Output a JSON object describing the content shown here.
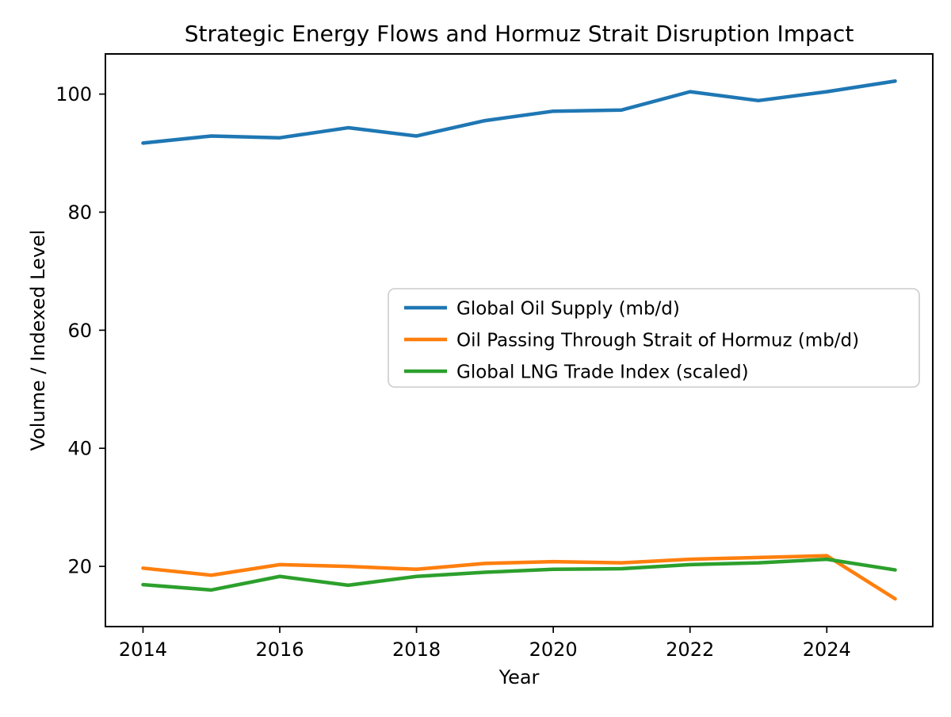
{
  "title": "Strategic Energy Flows and Hormuz Strait Disruption Impact",
  "chart_data": {
    "type": "line",
    "title": "Strategic Energy Flows and Hormuz Strait Disruption Impact",
    "xlabel": "Year",
    "ylabel": "Volume / Indexed Level",
    "x": [
      2014,
      2015,
      2016,
      2017,
      2018,
      2019,
      2020,
      2021,
      2022,
      2023,
      2024,
      2025
    ],
    "series": [
      {
        "name": "Global Oil Supply (mb/d)",
        "color": "#1f77b4",
        "values": [
          91.7,
          92.9,
          92.6,
          94.3,
          92.9,
          95.5,
          97.1,
          97.3,
          100.4,
          98.9,
          100.4,
          102.2
        ]
      },
      {
        "name": "Oil Passing Through Strait of Hormuz (mb/d)",
        "color": "#ff7f0e",
        "values": [
          19.7,
          18.5,
          20.3,
          20.0,
          19.5,
          20.5,
          20.8,
          20.6,
          21.2,
          21.5,
          21.8,
          14.5
        ]
      },
      {
        "name": "Global LNG Trade Index (scaled)",
        "color": "#2ca02c",
        "values": [
          16.9,
          16.0,
          18.3,
          16.8,
          18.3,
          19.0,
          19.5,
          19.6,
          20.3,
          20.6,
          21.2,
          19.4
        ]
      }
    ],
    "x_ticks": [
      2014,
      2016,
      2018,
      2020,
      2022,
      2024
    ],
    "y_ticks": [
      20,
      40,
      60,
      80,
      100
    ],
    "xlim": [
      2013.45,
      2025.55
    ],
    "ylim": [
      9.8,
      106.8
    ],
    "grid": false,
    "legend_position": "center",
    "axis_color": "#000000",
    "legend_border_color": "#cccccc",
    "legend_bg_color": "#ffffff"
  }
}
